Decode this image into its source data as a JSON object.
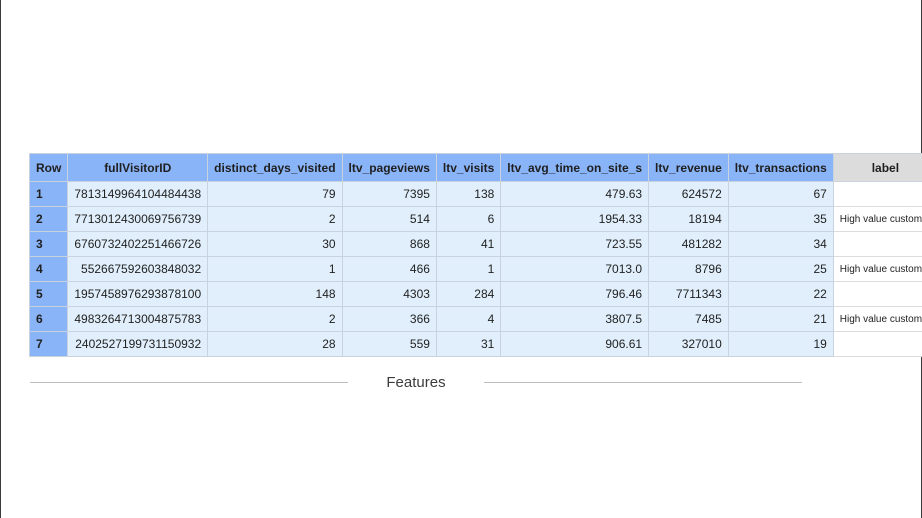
{
  "table": {
    "headers": {
      "row": "Row",
      "id": "fullVisitorID",
      "days": "distinct_days_visited",
      "pageviews": "ltv_pageviews",
      "visits": "ltv_visits",
      "time": "ltv_avg_time_on_site_s",
      "revenue": "ltv_revenue",
      "transactions": "ltv_transactions",
      "label": "label"
    },
    "rows": [
      {
        "row": "1",
        "id": "7813149964104484438",
        "days": "79",
        "pageviews": "7395",
        "visits": "138",
        "time": "479.63",
        "revenue": "624572",
        "transactions": "67",
        "label": ""
      },
      {
        "row": "2",
        "id": "7713012430069756739",
        "days": "2",
        "pageviews": "514",
        "visits": "6",
        "time": "1954.33",
        "revenue": "18194",
        "transactions": "35",
        "label": "High value customer"
      },
      {
        "row": "3",
        "id": "6760732402251466726",
        "days": "30",
        "pageviews": "868",
        "visits": "41",
        "time": "723.55",
        "revenue": "481282",
        "transactions": "34",
        "label": ""
      },
      {
        "row": "4",
        "id": "552667592603848032",
        "days": "1",
        "pageviews": "466",
        "visits": "1",
        "time": "7013.0",
        "revenue": "8796",
        "transactions": "25",
        "label": "High value customer"
      },
      {
        "row": "5",
        "id": "1957458976293878100",
        "days": "148",
        "pageviews": "4303",
        "visits": "284",
        "time": "796.46",
        "revenue": "7711343",
        "transactions": "22",
        "label": ""
      },
      {
        "row": "6",
        "id": "4983264713004875783",
        "days": "2",
        "pageviews": "366",
        "visits": "4",
        "time": "3807.5",
        "revenue": "7485",
        "transactions": "21",
        "label": "High value customer"
      },
      {
        "row": "7",
        "id": "2402527199731150932",
        "days": "28",
        "pageviews": "559",
        "visits": "31",
        "time": "906.61",
        "revenue": "327010",
        "transactions": "19",
        "label": ""
      }
    ]
  },
  "features_label": "Features",
  "colors": {
    "header_blue": "#8ab4f8",
    "cell_blue": "#e0effb",
    "label_header_gray": "#dcdcdc"
  }
}
